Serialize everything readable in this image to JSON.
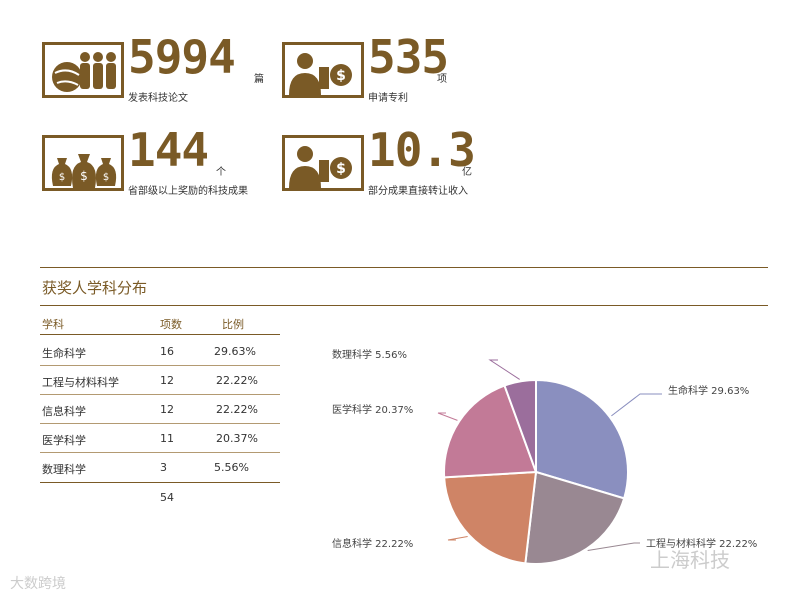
{
  "stats": [
    {
      "number": "5994",
      "unit": "篇",
      "desc": "发表科技论文",
      "icon": "people-globe-icon"
    },
    {
      "number": "535",
      "unit": "项",
      "desc": "申请专利",
      "icon": "person-coin-icon"
    },
    {
      "number": "144",
      "unit": "个",
      "desc": "省部级以上奖励的科技成果",
      "icon": "money-bags-icon"
    },
    {
      "number": "10.3",
      "unit": "亿",
      "desc": "部分成果直接转让收入",
      "icon": "person-coin-icon"
    }
  ],
  "section_title": "获奖人学科分布",
  "table": {
    "headers": [
      "学科",
      "项数",
      "比例"
    ],
    "rows": [
      [
        "生命科学",
        "16",
        "29.63%"
      ],
      [
        "工程与材料科学",
        "12",
        "22.22%"
      ],
      [
        "信息科学",
        "12",
        "22.22%"
      ],
      [
        "医学科学",
        "11",
        "20.37%"
      ],
      [
        "数理科学",
        "3",
        "5.56%"
      ]
    ],
    "total": "54"
  },
  "chart_data": {
    "type": "pie",
    "slices": [
      {
        "label": "生命科学",
        "value": 29.63,
        "text": "生命科学   29.63%",
        "color": "#8a8fbf"
      },
      {
        "label": "工程与材料科学",
        "value": 22.22,
        "text": "工程与材料科学  22.22%",
        "color": "#998892"
      },
      {
        "label": "信息科学",
        "value": 22.22,
        "text": "信息科学 22.22%",
        "color": "#cf8466"
      },
      {
        "label": "医学科学",
        "value": 20.37,
        "text": "医学科学 20.37%",
        "color": "#c27a97"
      },
      {
        "label": "数理科学",
        "value": 5.56,
        "text": "数理科学  5.56%",
        "color": "#9b6e9c"
      }
    ]
  },
  "watermarks": {
    "left": "大数跨境",
    "right": "上海科技"
  },
  "colors": {
    "brand": "#7a5a26",
    "rule": "#7a5a26"
  }
}
